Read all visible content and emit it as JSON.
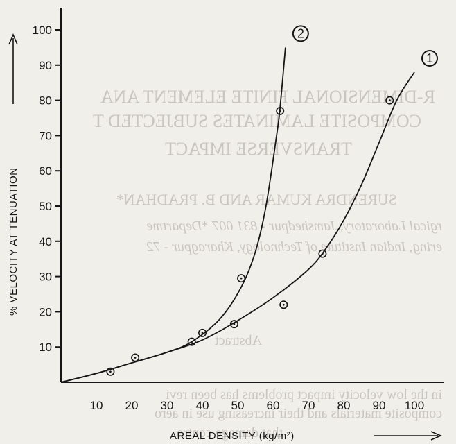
{
  "chart_data": {
    "type": "scatter",
    "title": "",
    "xlabel": "AREAL DENSITY (kg/m²)",
    "ylabel": "% VELOCITY AT TENUATION",
    "xlim": [
      0,
      107
    ],
    "ylim": [
      0,
      103
    ],
    "xticks": [
      10,
      20,
      30,
      40,
      50,
      60,
      70,
      80,
      90,
      100
    ],
    "yticks": [
      10,
      20,
      30,
      40,
      50,
      60,
      70,
      80,
      90,
      100
    ],
    "grid": false,
    "series": [
      {
        "name": "2",
        "points": [
          [
            14,
            3
          ],
          [
            21,
            7
          ],
          [
            37,
            11.5
          ],
          [
            40,
            14
          ],
          [
            51,
            29.5
          ],
          [
            62,
            77
          ]
        ],
        "curve": [
          [
            0,
            0
          ],
          [
            10,
            2.5
          ],
          [
            20,
            5.5
          ],
          [
            30,
            8.5
          ],
          [
            37,
            11.5
          ],
          [
            45,
            18
          ],
          [
            51,
            27
          ],
          [
            55,
            37
          ],
          [
            58,
            50
          ],
          [
            61,
            70
          ],
          [
            62,
            78
          ],
          [
            63.5,
            95
          ]
        ]
      },
      {
        "name": "1",
        "points": [
          [
            14,
            3
          ],
          [
            21,
            7
          ],
          [
            37,
            11.5
          ],
          [
            49,
            16.5
          ],
          [
            63,
            22
          ],
          [
            74,
            36.5
          ],
          [
            93,
            80
          ]
        ],
        "curve": [
          [
            0,
            0
          ],
          [
            10,
            2.5
          ],
          [
            20,
            5.5
          ],
          [
            30,
            8.5
          ],
          [
            40,
            12
          ],
          [
            50,
            17.5
          ],
          [
            60,
            24
          ],
          [
            70,
            32
          ],
          [
            75,
            38
          ],
          [
            80,
            46
          ],
          [
            85,
            56
          ],
          [
            90,
            68
          ],
          [
            95,
            80
          ],
          [
            100,
            88
          ]
        ]
      }
    ]
  },
  "bleed_through_text": [
    "R-DIMENSIONAL FINITE ELEMENT ANA",
    "COMPOSITE LAMINATES SUBJECTED T",
    "TRANSVERSE IMPACT",
    "SURENDRA KUMAR AND B. PRADHAN*",
    "rgical Laboratory, Jamshedpur - 831 007  *Departme",
    "ering, Indian Institute of Technology, Kharagpur - 72",
    "Abstract",
    "in the low velocity impact problems has been revi",
    "composite materials and their increasing use in aero",
    "that damage contro"
  ]
}
